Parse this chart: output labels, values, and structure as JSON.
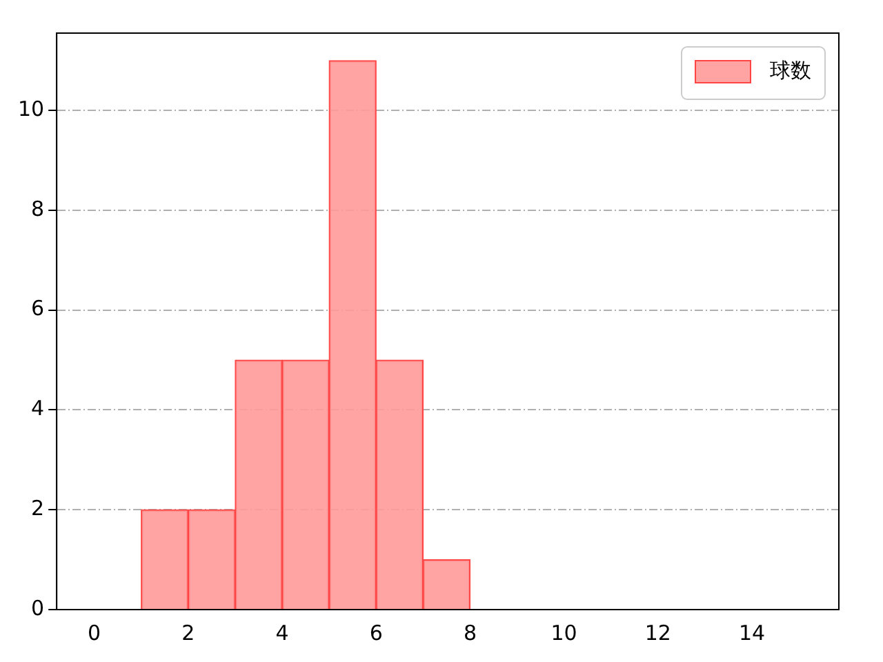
{
  "chart_data": {
    "type": "histogram",
    "bins": [
      1,
      2,
      3,
      4,
      5,
      6,
      7,
      8
    ],
    "series": [
      {
        "name": "球数",
        "color": "#ff9999",
        "values": [
          2,
          2,
          5,
          5,
          11,
          5,
          1
        ]
      }
    ],
    "xlim": [
      -0.8,
      15.85
    ],
    "xticks": [
      0,
      2,
      4,
      6,
      8,
      10,
      12,
      14
    ],
    "ylim": [
      0,
      11.55
    ],
    "yticks": [
      0,
      2,
      4,
      6,
      8,
      10
    ],
    "grid": "y",
    "legend": "top right"
  }
}
